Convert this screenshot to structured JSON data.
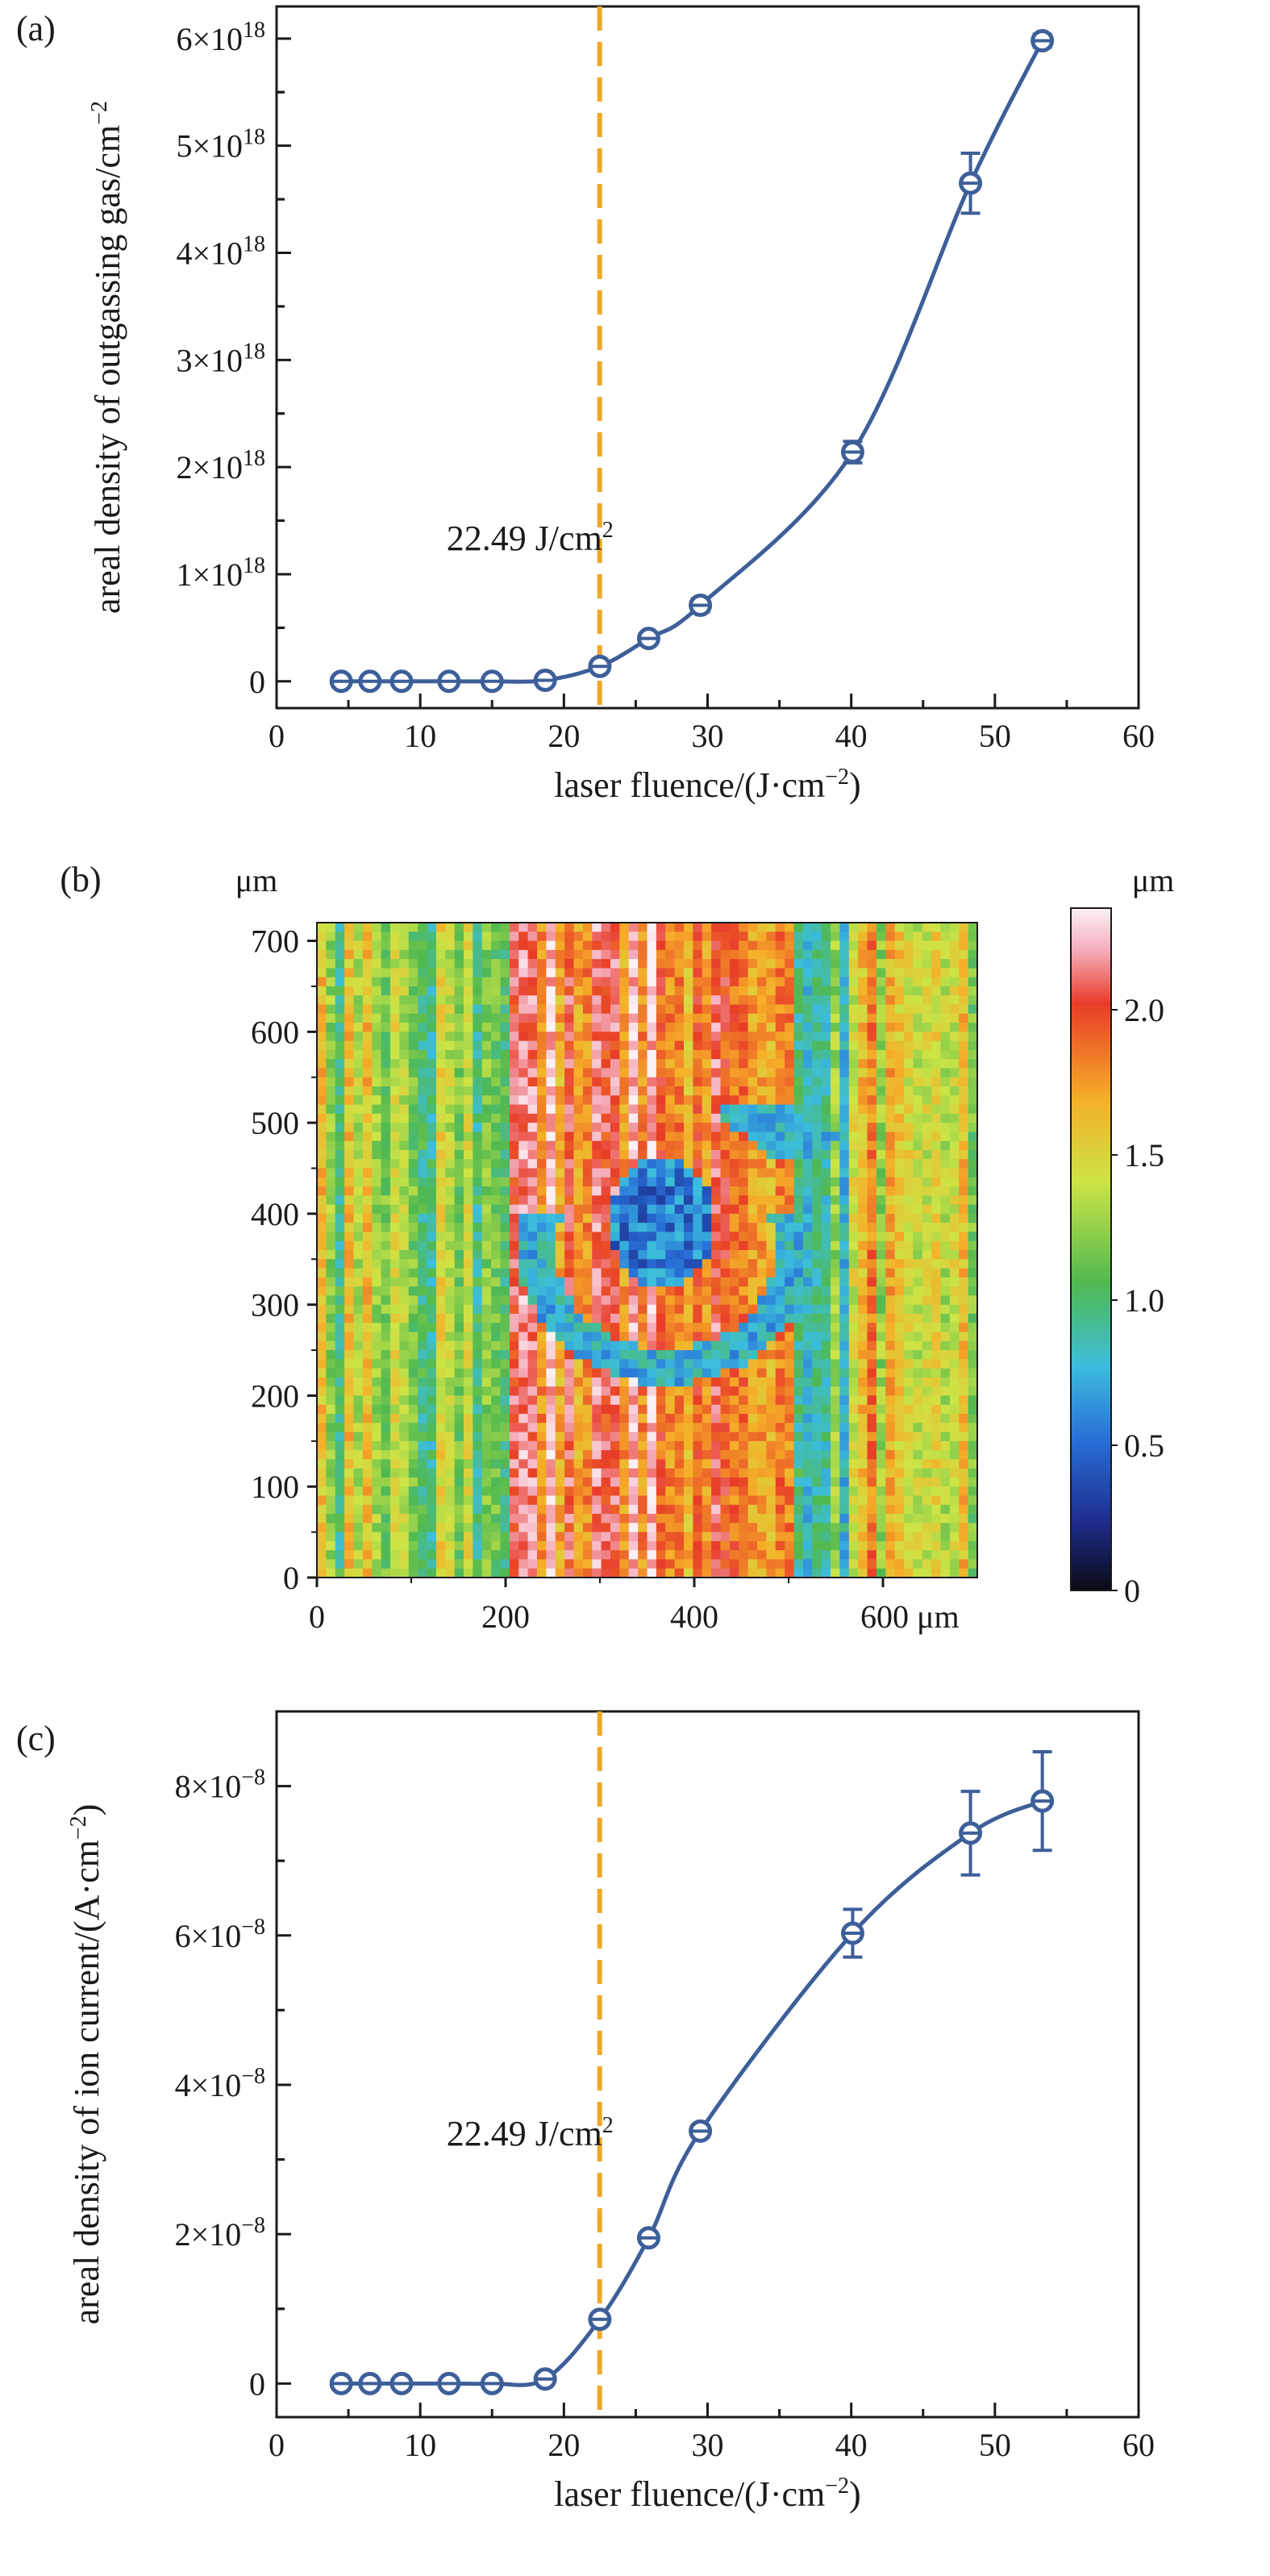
{
  "colors": {
    "series": "#3d5f99",
    "threshold": "#f0a828",
    "axis": "#1a1a1a"
  },
  "chart_data": [
    {
      "panel": "(a)",
      "type": "scatter",
      "xlabel": "laser fluence/(J·cm⁻²)",
      "ylabel": "areal density of outgassing gas/cm⁻²",
      "xlim": [
        0,
        60
      ],
      "ylim": [
        -2.5e+17,
        6.3e+18
      ],
      "xticks": [
        0,
        10,
        20,
        30,
        40,
        50,
        60
      ],
      "xtick_labels": [
        "0",
        "10",
        "20",
        "30",
        "40",
        "50",
        "60"
      ],
      "yticks": [
        0,
        1e+18,
        2e+18,
        3e+18,
        4e+18,
        5e+18,
        6e+18
      ],
      "ytick_labels": [
        {
          "mant": "0",
          "exp": ""
        },
        {
          "mant": "1×10",
          "exp": "18"
        },
        {
          "mant": "2×10",
          "exp": "18"
        },
        {
          "mant": "3×10",
          "exp": "18"
        },
        {
          "mant": "4×10",
          "exp": "18"
        },
        {
          "mant": "5×10",
          "exp": "18"
        },
        {
          "mant": "6×10",
          "exp": "18"
        }
      ],
      "threshold_x": 22.49,
      "annotation": "22.49 J/cm²",
      "series": [
        {
          "x": [
            4.5,
            6.5,
            8.7,
            12.0,
            15.0,
            18.7,
            22.5,
            25.9,
            29.5,
            40.1,
            48.3,
            53.3
          ],
          "y": [
            0,
            0,
            0,
            0,
            0,
            1e+16,
            1.4e+17,
            4e+17,
            7.1e+17,
            2.14e+18,
            4.65e+18,
            5.98e+18
          ],
          "err": [
            0,
            0,
            0,
            0,
            0,
            0,
            3e+16,
            5e+16,
            6e+16,
            1e+17,
            2.8e+17,
            6e+16
          ]
        }
      ]
    },
    {
      "panel": "(b)",
      "type": "heatmap",
      "x_unit": "μm",
      "y_unit": "μm",
      "colorbar_unit": "μm",
      "xlim": [
        0,
        700
      ],
      "ylim": [
        0,
        720
      ],
      "xtick_labels": [
        "0",
        "200",
        "400",
        "600 μm"
      ],
      "ytick_labels": [
        "0",
        "100",
        "200",
        "300",
        "400",
        "500",
        "600",
        "700"
      ],
      "colorbar_range": [
        0,
        2.35
      ],
      "colorbar_ticks": [
        "0",
        "0.5",
        "1.0",
        "1.5",
        "2.0"
      ]
    },
    {
      "panel": "(c)",
      "type": "scatter",
      "xlabel": "laser fluence/(J·cm⁻²)",
      "ylabel": "areal density of ion current/(A·cm⁻²)",
      "xlim": [
        0,
        60
      ],
      "ylim": [
        -4.5e-09,
        9e-08
      ],
      "xticks": [
        0,
        10,
        20,
        30,
        40,
        50,
        60
      ],
      "xtick_labels": [
        "0",
        "10",
        "20",
        "30",
        "40",
        "50",
        "60"
      ],
      "yticks": [
        0,
        2e-08,
        4e-08,
        6e-08,
        8e-08
      ],
      "ytick_labels": [
        {
          "mant": "0",
          "exp": ""
        },
        {
          "mant": "2×10",
          "exp": "−8"
        },
        {
          "mant": "4×10",
          "exp": "−8"
        },
        {
          "mant": "6×10",
          "exp": "−8"
        },
        {
          "mant": "8×10",
          "exp": "−8"
        }
      ],
      "threshold_x": 22.49,
      "annotation": "22.49 J/cm²",
      "series": [
        {
          "x": [
            4.5,
            6.5,
            8.7,
            12.0,
            15.0,
            18.7,
            22.5,
            25.9,
            29.5,
            40.1,
            48.3,
            53.3
          ],
          "y": [
            0,
            0,
            0,
            0,
            0,
            6e-10,
            8.6e-09,
            1.95e-08,
            3.38e-08,
            6.03e-08,
            7.37e-08,
            7.8e-08
          ],
          "err": [
            0,
            0,
            0,
            0,
            0,
            5e-10,
            6e-10,
            6e-10,
            8e-10,
            3.2e-09,
            5.6e-09,
            6.6e-09
          ]
        }
      ]
    }
  ]
}
